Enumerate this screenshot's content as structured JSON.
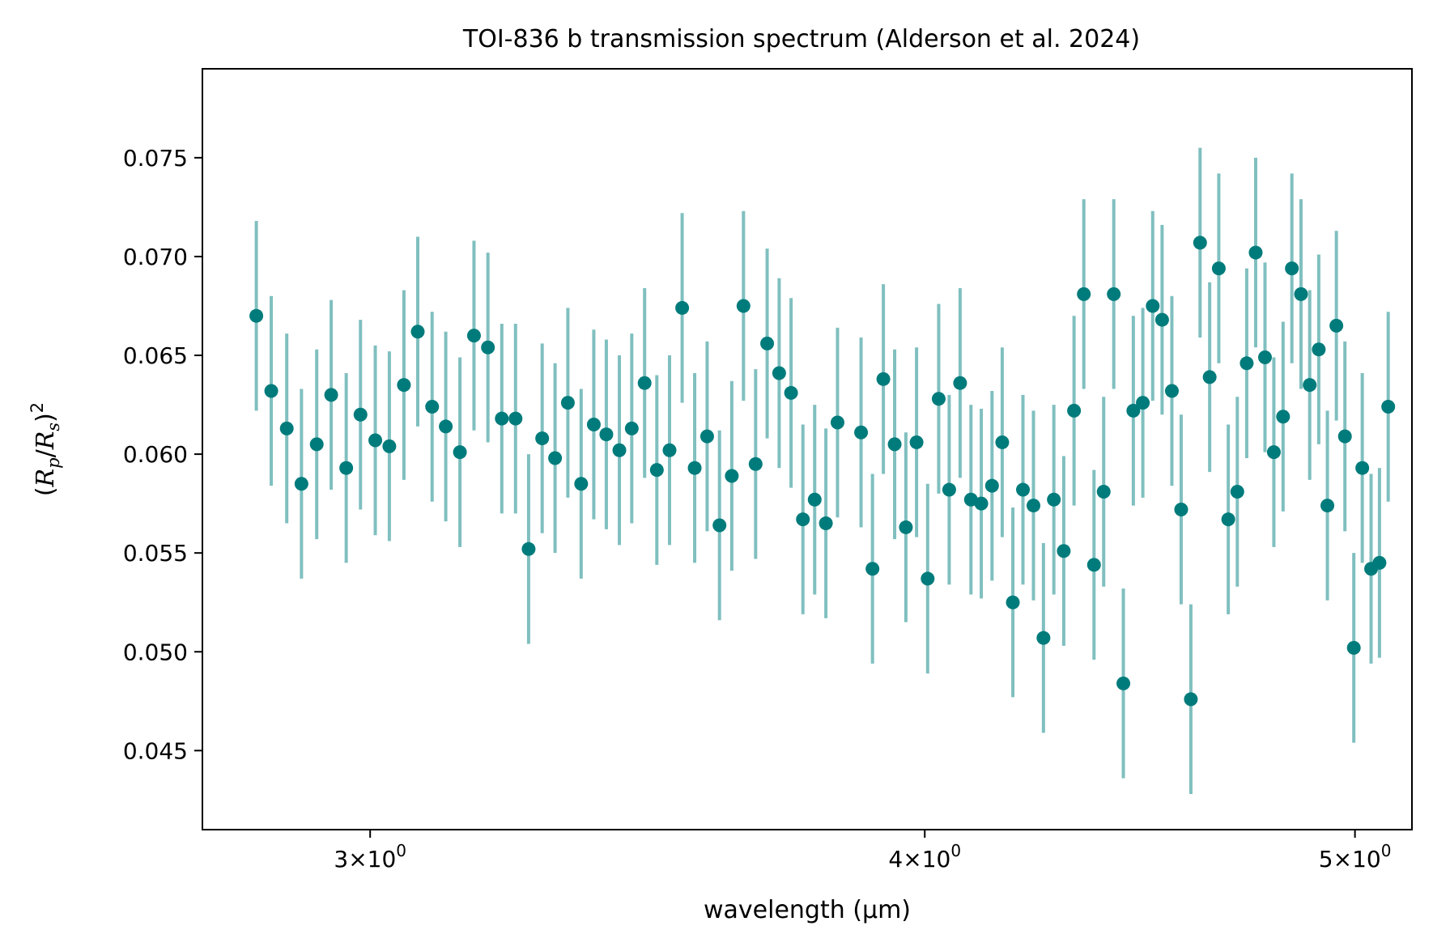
{
  "chart_data": {
    "type": "scatter",
    "title": "TOI-836 b transmission spectrum (Alderson et al. 2024)",
    "xlabel": "wavelength (µm)",
    "ylabel": {
      "open": "(",
      "r1": "R",
      "sub1": "p",
      "slash": "/",
      "r2": "R",
      "sub2": "s",
      "close": ")",
      "sup": "2"
    },
    "xscale": "log",
    "xlim": [
      2.75,
      5.15
    ],
    "ylim": [
      0.041,
      0.0795
    ],
    "grid": false,
    "legend": "none",
    "marker_color": "#007b7b",
    "errorbar_color": "#80bfbf",
    "x_ticks": [
      {
        "value": 3,
        "base": "3",
        "times": "×",
        "ten": "10",
        "exp": "0"
      },
      {
        "value": 4,
        "base": "4",
        "times": "×",
        "ten": "10",
        "exp": "0"
      },
      {
        "value": 5,
        "base": "5",
        "times": "×",
        "ten": "10",
        "exp": "0"
      }
    ],
    "y_ticks": [
      {
        "value": 0.045,
        "label": "0.045"
      },
      {
        "value": 0.05,
        "label": "0.050"
      },
      {
        "value": 0.055,
        "label": "0.055"
      },
      {
        "value": 0.06,
        "label": "0.060"
      },
      {
        "value": 0.065,
        "label": "0.065"
      },
      {
        "value": 0.07,
        "label": "0.070"
      },
      {
        "value": 0.075,
        "label": "0.075"
      }
    ],
    "x": [
      2.828,
      2.85,
      2.873,
      2.895,
      2.918,
      2.94,
      2.963,
      2.985,
      3.008,
      3.03,
      3.053,
      3.075,
      3.098,
      3.12,
      3.143,
      3.166,
      3.189,
      3.212,
      3.235,
      3.257,
      3.28,
      3.302,
      3.324,
      3.347,
      3.369,
      3.391,
      3.414,
      3.436,
      3.459,
      3.481,
      3.504,
      3.527,
      3.55,
      3.573,
      3.596,
      3.619,
      3.641,
      3.664,
      3.686,
      3.709,
      3.732,
      3.755,
      3.778,
      3.8,
      3.823,
      3.87,
      3.893,
      3.915,
      3.938,
      3.961,
      3.983,
      4.006,
      4.029,
      4.051,
      4.074,
      4.097,
      4.119,
      4.142,
      4.164,
      4.187,
      4.209,
      4.232,
      4.254,
      4.277,
      4.299,
      4.322,
      4.344,
      4.367,
      4.389,
      4.412,
      4.434,
      4.457,
      4.479,
      4.502,
      4.524,
      4.547,
      4.569,
      4.592,
      4.614,
      4.637,
      4.659,
      4.682,
      4.704,
      4.727,
      4.749,
      4.772,
      4.794,
      4.817,
      4.839,
      4.862,
      4.884,
      4.907,
      4.929,
      4.952,
      4.974,
      4.997,
      5.019,
      5.042,
      5.064,
      5.087
    ],
    "y": [
      0.067,
      0.0632,
      0.0613,
      0.0585,
      0.0605,
      0.063,
      0.0593,
      0.062,
      0.0607,
      0.0604,
      0.0635,
      0.0662,
      0.0624,
      0.0614,
      0.0601,
      0.066,
      0.0654,
      0.0618,
      0.0618,
      0.0552,
      0.0608,
      0.0598,
      0.0626,
      0.0585,
      0.0615,
      0.061,
      0.0602,
      0.0613,
      0.0636,
      0.0592,
      0.0602,
      0.0674,
      0.0593,
      0.0609,
      0.0564,
      0.0589,
      0.0675,
      0.0595,
      0.0656,
      0.0641,
      0.0631,
      0.0567,
      0.0577,
      0.0565,
      0.0616,
      0.0611,
      0.0542,
      0.0638,
      0.0605,
      0.0563,
      0.0606,
      0.0537,
      0.0628,
      0.0582,
      0.0636,
      0.0577,
      0.0575,
      0.0584,
      0.0606,
      0.0525,
      0.0582,
      0.0574,
      0.0507,
      0.0577,
      0.0551,
      0.0622,
      0.0681,
      0.0544,
      0.0581,
      0.0681,
      0.0484,
      0.0622,
      0.0626,
      0.0675,
      0.0668,
      0.0632,
      0.0572,
      0.0476,
      0.0707,
      0.0639,
      0.0694,
      0.0567,
      0.0581,
      0.0646,
      0.0702,
      0.0649,
      0.0601,
      0.0619,
      0.0694,
      0.0681,
      0.0635,
      0.0653,
      0.0574,
      0.0665,
      0.0609,
      0.0502,
      0.0593,
      0.0542,
      0.0545,
      0.0624
    ],
    "yerr": [
      0.0048,
      0.0048,
      0.0048,
      0.0048,
      0.0048,
      0.0048,
      0.0048,
      0.0048,
      0.0048,
      0.0048,
      0.0048,
      0.0048,
      0.0048,
      0.0048,
      0.0048,
      0.0048,
      0.0048,
      0.0048,
      0.0048,
      0.0048,
      0.0048,
      0.0048,
      0.0048,
      0.0048,
      0.0048,
      0.0048,
      0.0048,
      0.0048,
      0.0048,
      0.0048,
      0.0048,
      0.0048,
      0.0048,
      0.0048,
      0.0048,
      0.0048,
      0.0048,
      0.0048,
      0.0048,
      0.0048,
      0.0048,
      0.0048,
      0.0048,
      0.0048,
      0.0048,
      0.0048,
      0.0048,
      0.0048,
      0.0048,
      0.0048,
      0.0048,
      0.0048,
      0.0048,
      0.0048,
      0.0048,
      0.0048,
      0.0048,
      0.0048,
      0.0048,
      0.0048,
      0.0048,
      0.0048,
      0.0048,
      0.0048,
      0.0048,
      0.0048,
      0.0048,
      0.0048,
      0.0048,
      0.0048,
      0.0048,
      0.0048,
      0.0048,
      0.0048,
      0.0048,
      0.0048,
      0.0048,
      0.0048,
      0.0048,
      0.0048,
      0.0048,
      0.0048,
      0.0048,
      0.0048,
      0.0048,
      0.0048,
      0.0048,
      0.0048,
      0.0048,
      0.0048,
      0.0048,
      0.0048,
      0.0048,
      0.0048,
      0.0048,
      0.0048,
      0.0048,
      0.0048,
      0.0048,
      0.0048
    ]
  }
}
